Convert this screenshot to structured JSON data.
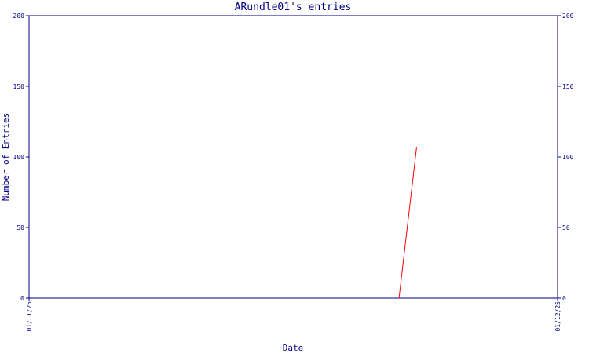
{
  "chart_data": {
    "type": "line",
    "title": "ARundle01's entries",
    "xlabel": "Date",
    "ylabel": "Number of Entries",
    "x_tick_labels": [
      "01/11/25",
      "01/12/25"
    ],
    "xlim": [
      "01/11/25",
      "01/12/25"
    ],
    "y_ticks": [
      0,
      50,
      100,
      150,
      200
    ],
    "ylim": [
      0,
      200
    ],
    "grid": false,
    "right_axis": true,
    "series": [
      {
        "color": "#ff0000",
        "x": [
          "22/11/25",
          "23/11/25"
        ],
        "y": [
          0,
          107
        ]
      }
    ]
  },
  "colors": {
    "axis": "#000080",
    "text": "#000080",
    "series": "#ff0000"
  }
}
